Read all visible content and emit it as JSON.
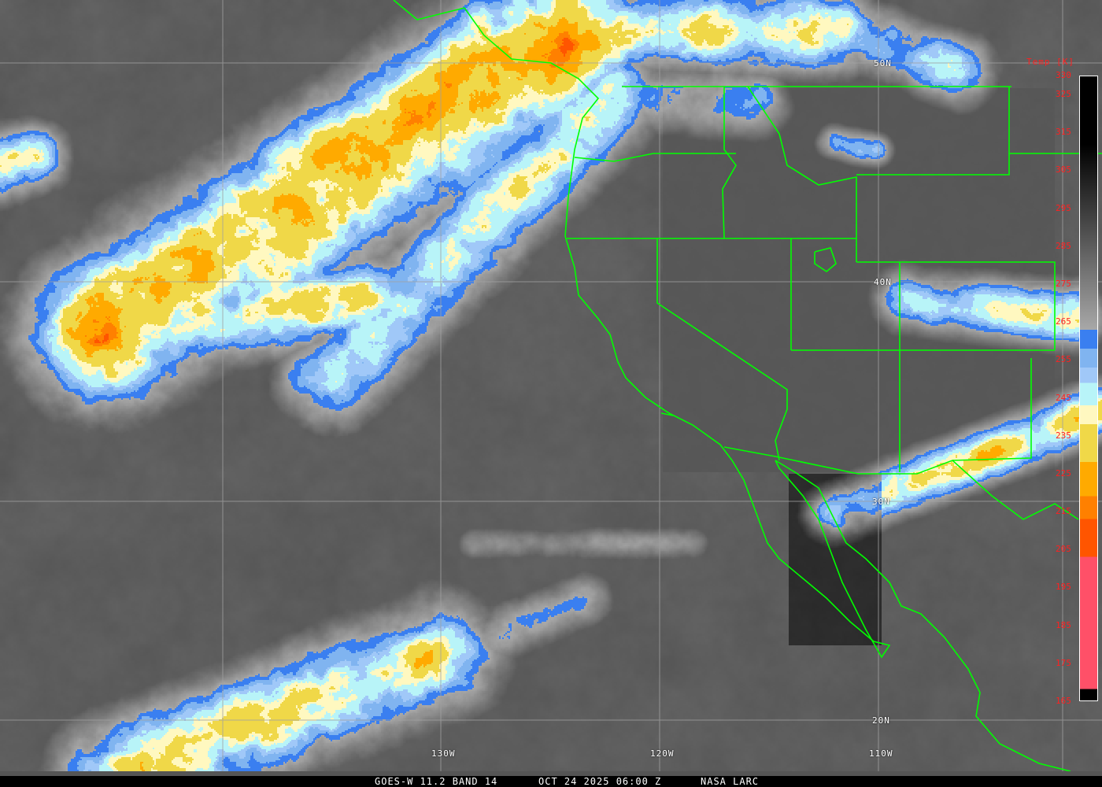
{
  "caption": {
    "satellite_band": "GOES-W 11.2 BAND 14",
    "datetime": "OCT 24 2025 06:00 Z",
    "source": "NASA LARC"
  },
  "legend": {
    "title": "Temp [K]",
    "ticks": [
      "330",
      "325",
      "315",
      "305",
      "295",
      "285",
      "275",
      "265",
      "255",
      "245",
      "235",
      "225",
      "215",
      "205",
      "195",
      "185",
      "175",
      "165"
    ],
    "range_k": [
      165,
      330
    ],
    "color_stops": [
      {
        "from": 330,
        "to": 312,
        "color": "#000000"
      },
      {
        "from": 312,
        "to": 263,
        "color_start": "#000000",
        "color_end": "#a8a8a8"
      },
      {
        "from": 263,
        "to": 258,
        "color": "#3a7ff0"
      },
      {
        "from": 258,
        "to": 253,
        "color": "#80b4f0"
      },
      {
        "from": 253,
        "to": 249,
        "color": "#a0c8f8"
      },
      {
        "from": 249,
        "to": 243,
        "color": "#b8f4f8"
      },
      {
        "from": 243,
        "to": 238,
        "color": "#fff8c0"
      },
      {
        "from": 238,
        "to": 228,
        "color": "#f0d848"
      },
      {
        "from": 228,
        "to": 219,
        "color": "#ffaa00"
      },
      {
        "from": 219,
        "to": 213,
        "color": "#ff8000"
      },
      {
        "from": 213,
        "to": 203,
        "color": "#ff5500"
      },
      {
        "from": 203,
        "to": 168,
        "color": "#ff5068"
      },
      {
        "from": 168,
        "to": 165,
        "color": "#000000"
      }
    ]
  },
  "grid": {
    "latitudes": [
      "50N",
      "40N",
      "30N",
      "20N"
    ],
    "longitudes": [
      "130W",
      "120W",
      "110W"
    ]
  },
  "colors": {
    "borders": "#00ff00",
    "grid": "#a0a0a0",
    "labels": "#ffffff",
    "legend_text": "#ff2020"
  }
}
